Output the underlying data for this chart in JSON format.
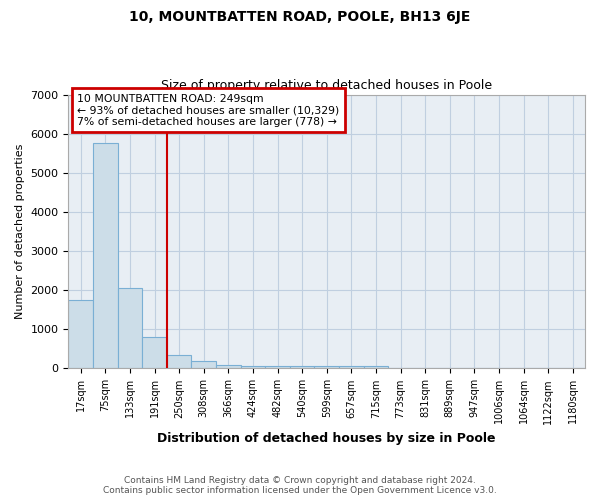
{
  "title": "10, MOUNTBATTEN ROAD, POOLE, BH13 6JE",
  "subtitle": "Size of property relative to detached houses in Poole",
  "xlabel": "Distribution of detached houses by size in Poole",
  "ylabel": "Number of detached properties",
  "bins": [
    "17sqm",
    "75sqm",
    "133sqm",
    "191sqm",
    "250sqm",
    "308sqm",
    "366sqm",
    "424sqm",
    "482sqm",
    "540sqm",
    "599sqm",
    "657sqm",
    "715sqm",
    "773sqm",
    "831sqm",
    "889sqm",
    "947sqm",
    "1006sqm",
    "1064sqm",
    "1122sqm",
    "1180sqm"
  ],
  "values": [
    1750,
    5750,
    2050,
    800,
    350,
    200,
    100,
    75,
    75,
    75,
    50,
    50,
    75,
    0,
    0,
    0,
    0,
    0,
    0,
    0,
    0
  ],
  "bar_color": "#ccdde8",
  "bar_edge_color": "#7aafd4",
  "vline_bin": 4,
  "vline_color": "#cc0000",
  "annotation_line1": "10 MOUNTBATTEN ROAD: 249sqm",
  "annotation_line2": "← 93% of detached houses are smaller (10,329)",
  "annotation_line3": "7% of semi-detached houses are larger (778) →",
  "annotation_box_color": "#cc0000",
  "ylim": [
    0,
    7000
  ],
  "yticks": [
    0,
    1000,
    2000,
    3000,
    4000,
    5000,
    6000,
    7000
  ],
  "grid_color": "#c0cfe0",
  "background_color": "#e8eef4",
  "footnote1": "Contains HM Land Registry data © Crown copyright and database right 2024.",
  "footnote2": "Contains public sector information licensed under the Open Government Licence v3.0."
}
